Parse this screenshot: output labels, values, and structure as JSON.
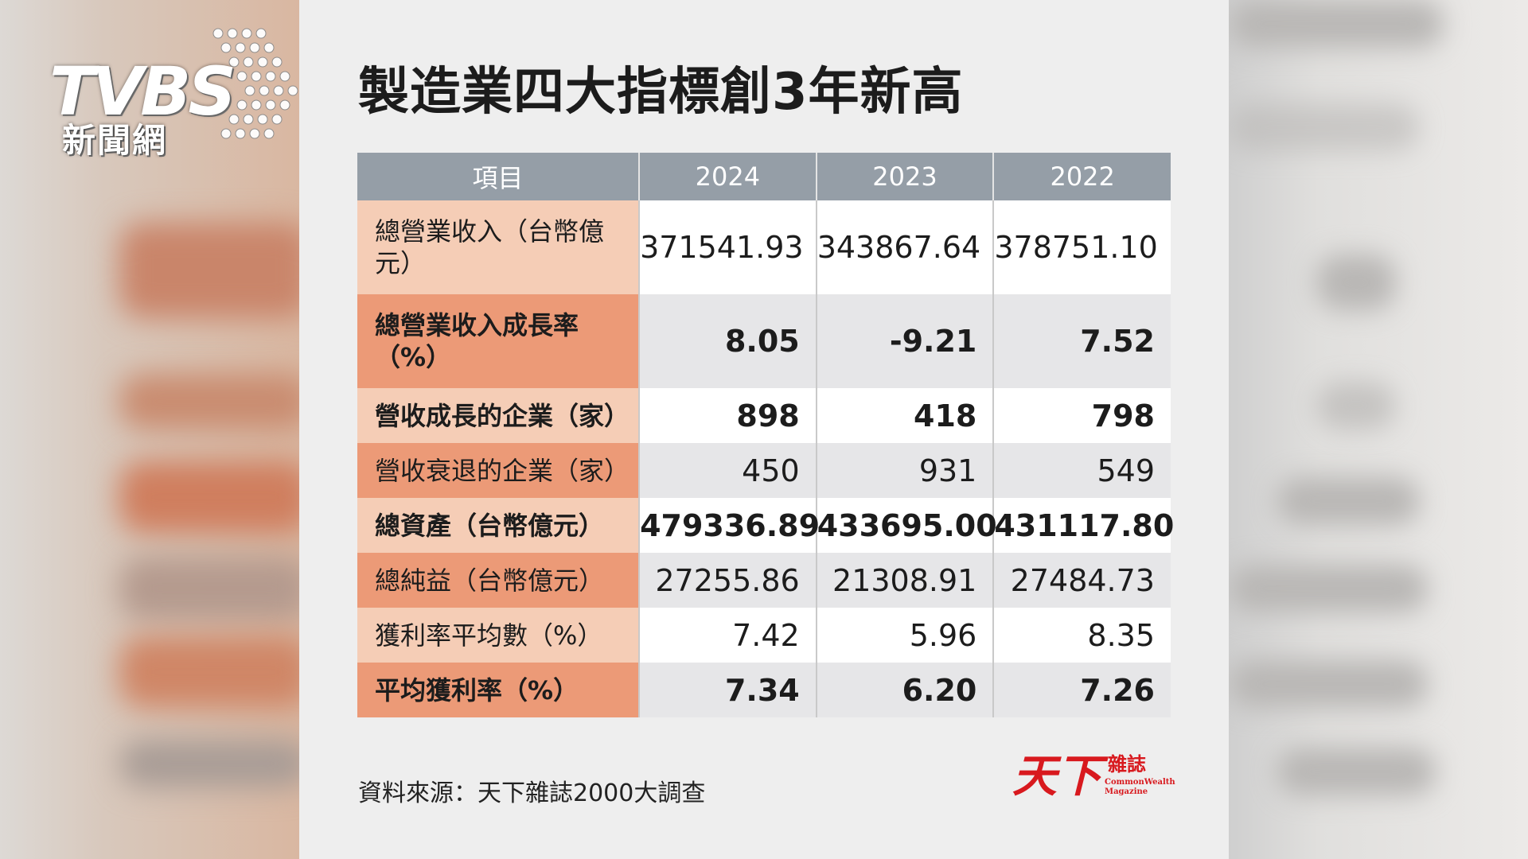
{
  "watermark": {
    "word": "TVBS",
    "subtitle": "新聞網"
  },
  "publisher_logo": {
    "chinese_big": "天下",
    "chinese_small": "雜誌",
    "english": "CommonWealth Magazine"
  },
  "chart_data": {
    "type": "table",
    "title": "製造業四大指標創3年新高",
    "columns": [
      "項目",
      "2024",
      "2023",
      "2022"
    ],
    "rows": [
      {
        "label": "總營業收入（台幣億元）",
        "values": [
          "371541.93",
          "343867.64",
          "378751.10"
        ],
        "bold": false,
        "shade": "light"
      },
      {
        "label": "總營業收入成長率（%）",
        "values": [
          "8.05",
          "-9.21",
          "7.52"
        ],
        "bold": true,
        "shade": "dark"
      },
      {
        "label": "營收成長的企業（家）",
        "values": [
          "898",
          "418",
          "798"
        ],
        "bold": true,
        "shade": "light"
      },
      {
        "label": "營收衰退的企業（家）",
        "values": [
          "450",
          "931",
          "549"
        ],
        "bold": false,
        "shade": "dark"
      },
      {
        "label": "總資產（台幣億元）",
        "values": [
          "479336.89",
          "433695.00",
          "431117.80"
        ],
        "bold": true,
        "shade": "light"
      },
      {
        "label": "總純益（台幣億元）",
        "values": [
          "27255.86",
          "21308.91",
          "27484.73"
        ],
        "bold": false,
        "shade": "dark"
      },
      {
        "label": "獲利率平均數（%）",
        "values": [
          "7.42",
          "5.96",
          "8.35"
        ],
        "bold": false,
        "shade": "light"
      },
      {
        "label": "平均獲利率（%）",
        "values": [
          "7.34",
          "6.20",
          "7.26"
        ],
        "bold": true,
        "shade": "dark"
      }
    ],
    "source": "資料來源：天下雜誌2000大調查"
  },
  "colors": {
    "header_bg": "#959ea7",
    "label_light": "#f5cdb6",
    "label_dark": "#ec9a77",
    "cell_light": "#ffffff",
    "cell_dark": "#e6e6e8",
    "logo_red": "#d8191e"
  }
}
